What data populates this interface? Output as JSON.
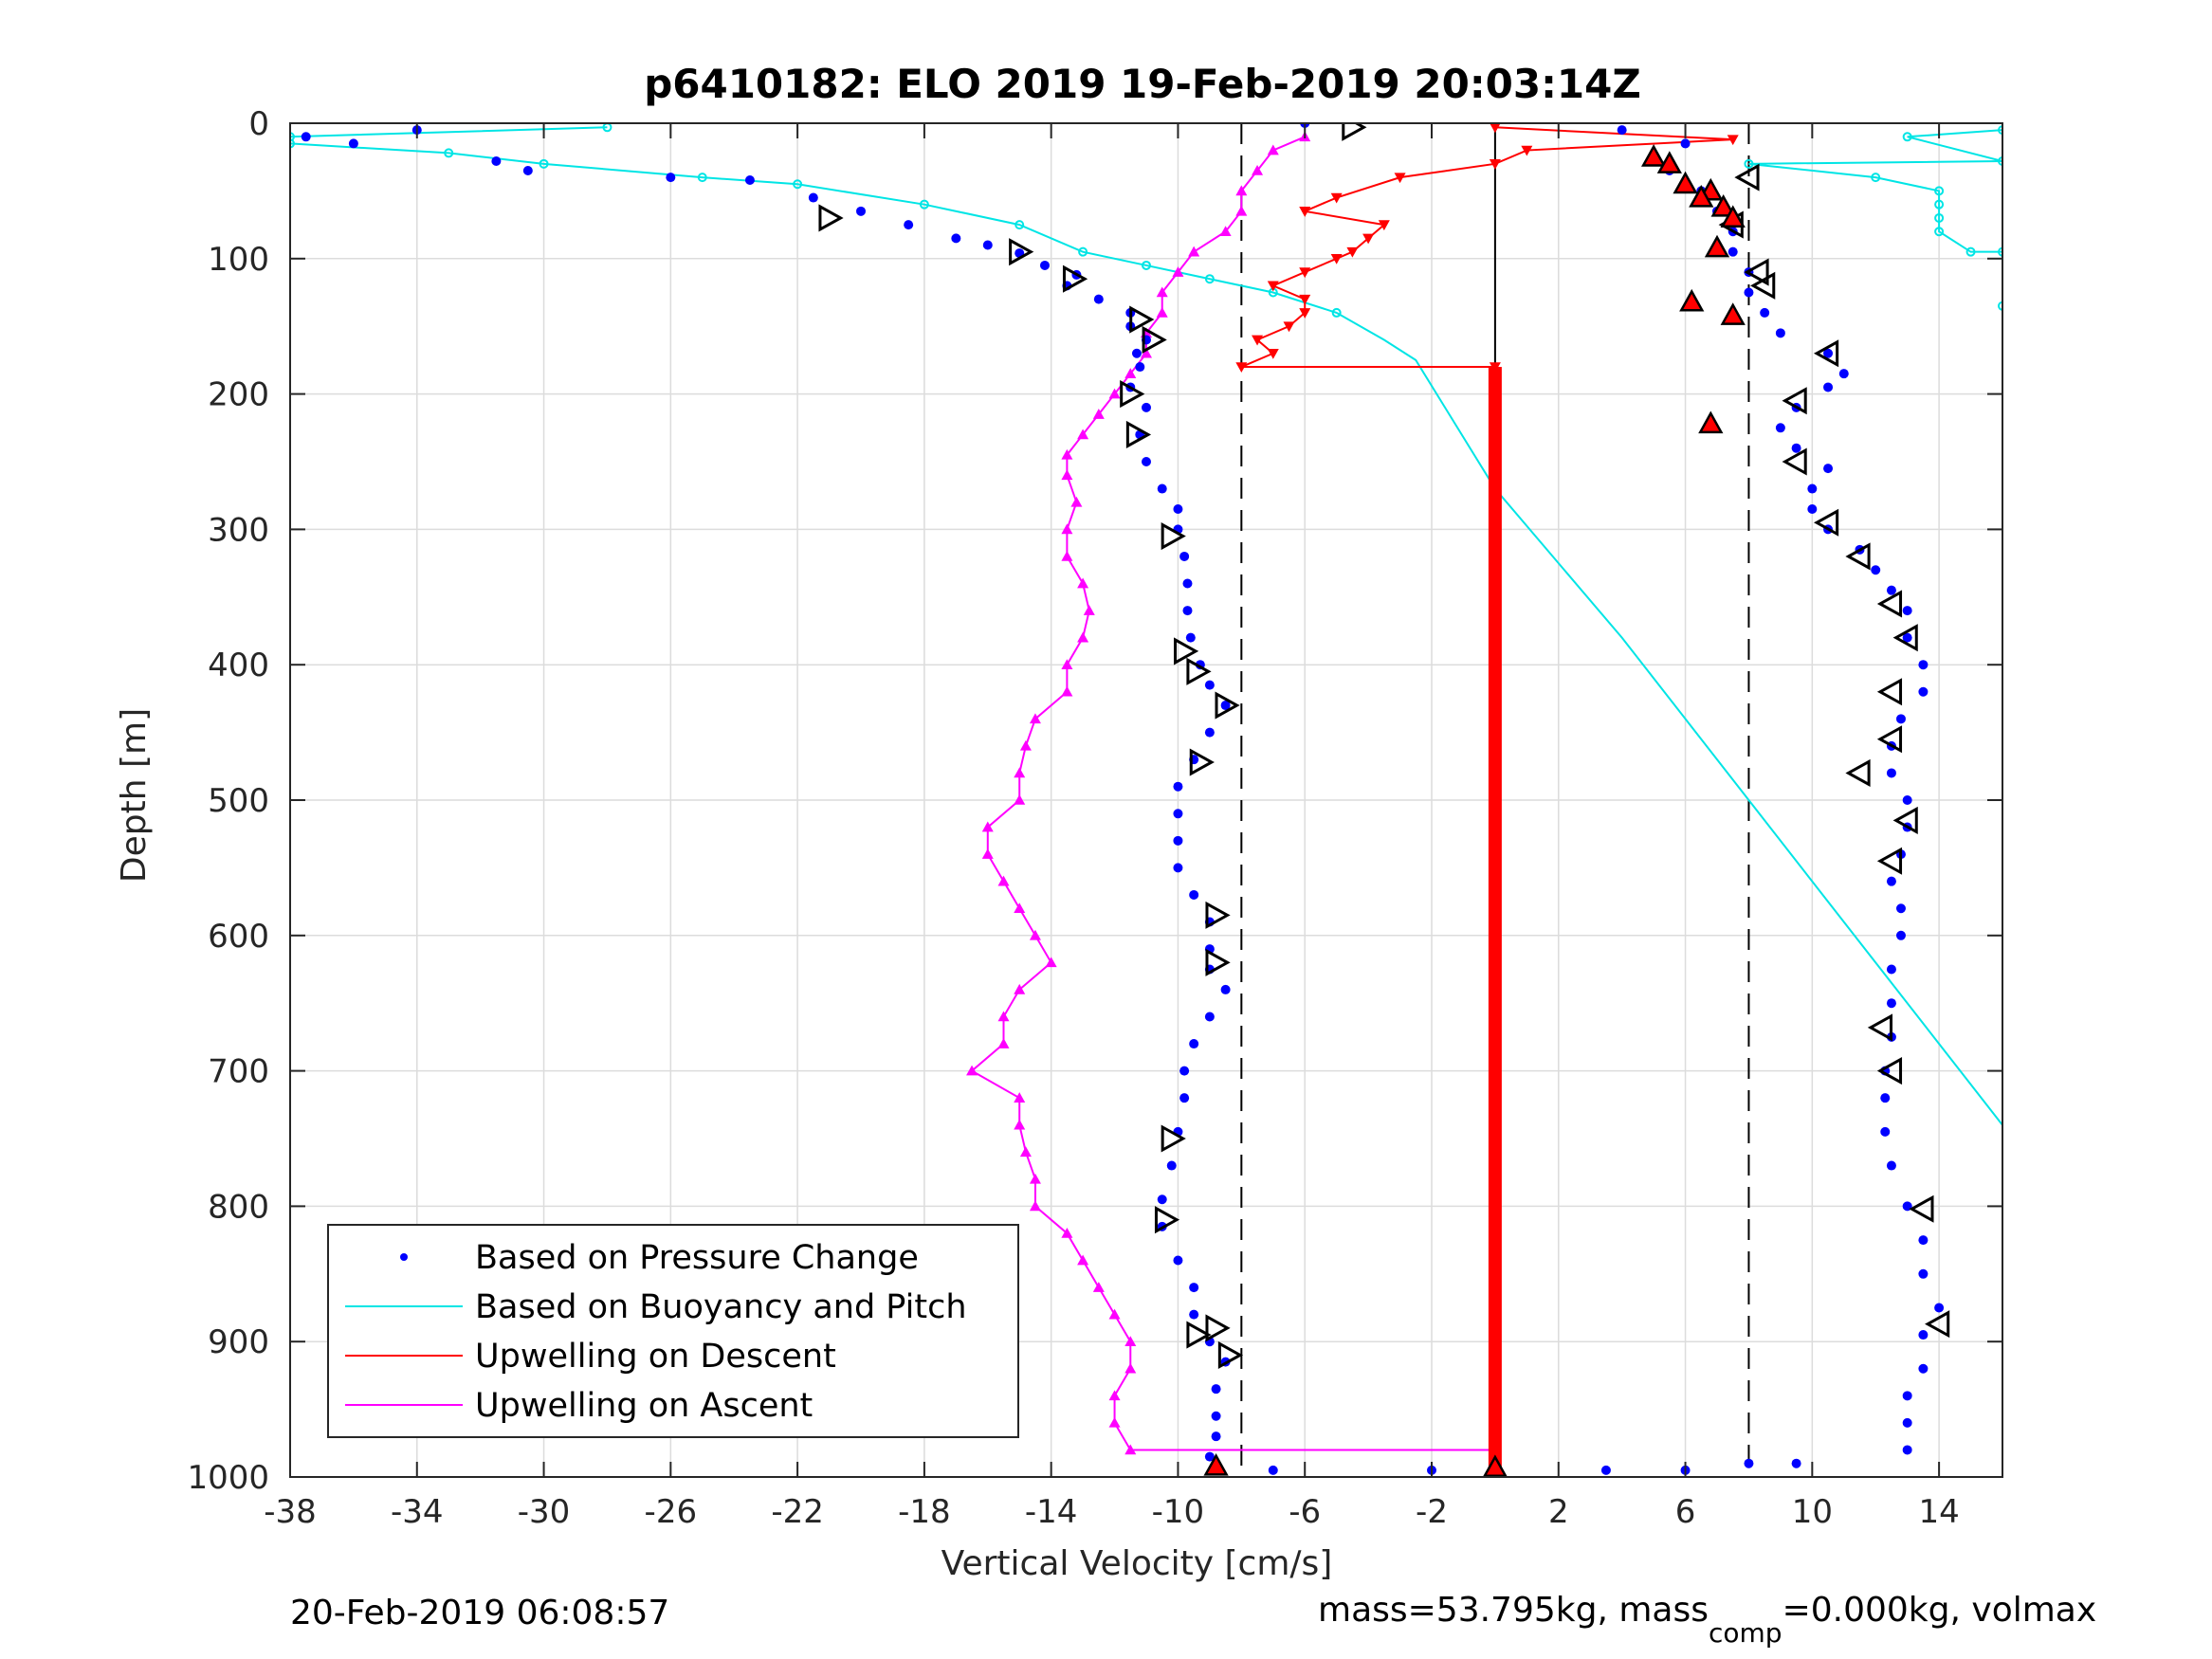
{
  "chart_data": {
    "type": "scatter",
    "title": "p6410182: ELO 2019 19-Feb-2019 20:03:14Z",
    "xlabel": "Vertical Velocity [cm/s]",
    "ylabel": "Depth [m]",
    "xlim": [
      -38,
      16
    ],
    "ylim": [
      0,
      1000
    ],
    "y_reversed": true,
    "grid": true,
    "xticks": [
      -38,
      -34,
      -30,
      -26,
      -22,
      -18,
      -14,
      -10,
      -6,
      -2,
      2,
      6,
      10,
      14
    ],
    "yticks": [
      0,
      100,
      200,
      300,
      400,
      500,
      600,
      700,
      800,
      900,
      1000
    ],
    "reference_lines": {
      "dashed_x": [
        -8,
        8
      ],
      "solid_x": 0
    },
    "legend": {
      "placement": "bottom-left",
      "entries": [
        {
          "label": "Based on Pressure Change",
          "color": "#0000ff",
          "marker": "dot"
        },
        {
          "label": "Based on Buoyancy and Pitch",
          "color": "#00e5e5",
          "marker": "line"
        },
        {
          "label": "Upwelling on Descent",
          "color": "#ff0000",
          "marker": "line"
        },
        {
          "label": "Upwelling on Ascent",
          "color": "#ff00ff",
          "marker": "line"
        }
      ]
    },
    "series": [
      {
        "name": "Based on Pressure Change",
        "color": "#0000ff",
        "style": "dots",
        "descent": [
          [
            -37.5,
            10
          ],
          [
            -36,
            15
          ],
          [
            -34,
            5
          ],
          [
            -31.5,
            28
          ],
          [
            -30.5,
            35
          ],
          [
            -26,
            40
          ],
          [
            -23.5,
            42
          ],
          [
            -21.5,
            55
          ],
          [
            -20,
            65
          ],
          [
            -18.5,
            75
          ],
          [
            -17,
            85
          ],
          [
            -16,
            90
          ],
          [
            -15,
            96
          ],
          [
            -14.2,
            105
          ],
          [
            -13.2,
            112
          ],
          [
            -13.5,
            120
          ],
          [
            -12.5,
            130
          ],
          [
            -11.5,
            140
          ],
          [
            -11.5,
            150
          ],
          [
            -11,
            160
          ],
          [
            -11.3,
            170
          ],
          [
            -11.2,
            180
          ],
          [
            -11.5,
            195
          ],
          [
            -11,
            210
          ],
          [
            -11.2,
            230
          ],
          [
            -11,
            250
          ],
          [
            -10.5,
            270
          ],
          [
            -10,
            285
          ],
          [
            -10,
            300
          ],
          [
            -9.8,
            320
          ],
          [
            -9.7,
            340
          ],
          [
            -9.7,
            360
          ],
          [
            -9.6,
            380
          ],
          [
            -9.3,
            400
          ],
          [
            -9.0,
            415
          ],
          [
            -8.5,
            430
          ],
          [
            -9.0,
            450
          ],
          [
            -9.5,
            470
          ],
          [
            -10,
            490
          ],
          [
            -10,
            510
          ],
          [
            -10,
            530
          ],
          [
            -10,
            550
          ],
          [
            -9.5,
            570
          ],
          [
            -9.0,
            590
          ],
          [
            -9.0,
            610
          ],
          [
            -9.0,
            625
          ],
          [
            -8.5,
            640
          ],
          [
            -9.0,
            660
          ],
          [
            -9.5,
            680
          ],
          [
            -9.8,
            700
          ],
          [
            -9.8,
            720
          ],
          [
            -10.0,
            745
          ],
          [
            -10.2,
            770
          ],
          [
            -10.5,
            795
          ],
          [
            -10.5,
            815
          ],
          [
            -10.0,
            840
          ],
          [
            -9.5,
            860
          ],
          [
            -9.5,
            880
          ],
          [
            -9.0,
            900
          ],
          [
            -8.5,
            915
          ],
          [
            -8.8,
            935
          ],
          [
            -8.8,
            955
          ],
          [
            -8.8,
            970
          ],
          [
            -9.0,
            985
          ],
          [
            -8.8,
            995
          ]
        ],
        "ascent": [
          [
            -7.0,
            995
          ],
          [
            -2.0,
            995
          ],
          [
            3.5,
            995
          ],
          [
            6.0,
            995
          ],
          [
            8.0,
            990
          ],
          [
            9.5,
            990
          ],
          [
            13.0,
            980
          ],
          [
            13.0,
            960
          ],
          [
            13.0,
            940
          ],
          [
            13.5,
            920
          ],
          [
            13.5,
            895
          ],
          [
            14.0,
            875
          ],
          [
            13.5,
            850
          ],
          [
            13.5,
            825
          ],
          [
            13.0,
            800
          ],
          [
            12.5,
            770
          ],
          [
            12.3,
            745
          ],
          [
            12.3,
            720
          ],
          [
            12.3,
            700
          ],
          [
            12.5,
            675
          ],
          [
            12.5,
            650
          ],
          [
            12.5,
            625
          ],
          [
            12.8,
            600
          ],
          [
            12.8,
            580
          ],
          [
            12.5,
            560
          ],
          [
            12.8,
            540
          ],
          [
            13.0,
            520
          ],
          [
            13.0,
            500
          ],
          [
            12.5,
            480
          ],
          [
            12.5,
            460
          ],
          [
            12.8,
            440
          ],
          [
            13.5,
            420
          ],
          [
            13.5,
            400
          ],
          [
            13.0,
            380
          ],
          [
            13.0,
            360
          ],
          [
            12.5,
            345
          ],
          [
            12.0,
            330
          ],
          [
            11.5,
            315
          ],
          [
            10.5,
            300
          ],
          [
            10.0,
            285
          ],
          [
            10.0,
            270
          ],
          [
            10.5,
            255
          ],
          [
            9.5,
            240
          ],
          [
            9.0,
            225
          ],
          [
            9.5,
            210
          ],
          [
            10.5,
            195
          ],
          [
            11.0,
            185
          ],
          [
            10.5,
            170
          ],
          [
            9.0,
            155
          ],
          [
            8.5,
            140
          ],
          [
            8.0,
            125
          ],
          [
            8.0,
            110
          ],
          [
            7.5,
            95
          ],
          [
            7.5,
            80
          ],
          [
            7.0,
            65
          ],
          [
            6.5,
            50
          ],
          [
            5.5,
            35
          ],
          [
            5.0,
            25
          ],
          [
            6.0,
            15
          ],
          [
            4.0,
            5
          ],
          [
            -6.0,
            0
          ]
        ]
      },
      {
        "name": "Based on Buoyancy and Pitch",
        "color": "#00e5e5",
        "style": "line",
        "points": [
          [
            -28,
            3
          ],
          [
            -38,
            10
          ],
          [
            -38,
            15
          ],
          [
            -33,
            22
          ],
          [
            -30,
            30
          ],
          [
            -25,
            40
          ],
          [
            -22,
            45
          ],
          [
            -18,
            60
          ],
          [
            -15,
            75
          ],
          [
            -13,
            95
          ],
          [
            -11,
            105
          ],
          [
            -9,
            115
          ],
          [
            -7,
            125
          ],
          [
            -5,
            140
          ],
          [
            -3.5,
            160
          ],
          [
            -2.5,
            175
          ],
          [
            0,
            270
          ],
          [
            4,
            380
          ],
          [
            8,
            500
          ],
          [
            12,
            620
          ],
          [
            16,
            740
          ]
        ],
        "surface_right": [
          [
            16,
            5
          ],
          [
            13,
            10
          ],
          [
            16,
            28
          ],
          [
            8,
            30
          ],
          [
            12,
            40
          ],
          [
            14,
            50
          ],
          [
            14,
            60
          ],
          [
            14,
            70
          ],
          [
            14,
            80
          ],
          [
            15,
            95
          ],
          [
            16,
            95
          ],
          [
            16,
            135
          ]
        ]
      },
      {
        "name": "Upwelling on Descent",
        "color": "#ff0000",
        "style": "triangle-down",
        "points": [
          [
            0,
            3
          ],
          [
            7.5,
            12
          ],
          [
            1,
            20
          ],
          [
            0,
            30
          ],
          [
            -3,
            40
          ],
          [
            -5,
            55
          ],
          [
            -6,
            65
          ],
          [
            -3.5,
            75
          ],
          [
            -4,
            85
          ],
          [
            -4.5,
            95
          ],
          [
            -5,
            100
          ],
          [
            -6,
            110
          ],
          [
            -7,
            120
          ],
          [
            -6,
            130
          ],
          [
            -6,
            140
          ],
          [
            -6.5,
            150
          ],
          [
            -7.5,
            160
          ],
          [
            -7,
            170
          ],
          [
            -8,
            180
          ],
          [
            0,
            180
          ]
        ],
        "bar": {
          "x": 0,
          "y_from": 180,
          "y_to": 1000
        }
      },
      {
        "name": "Upwelling on Ascent",
        "color": "#ff00ff",
        "style": "triangle-up",
        "points": [
          [
            0,
            980
          ],
          [
            -11.5,
            980
          ],
          [
            -12,
            960
          ],
          [
            -12,
            940
          ],
          [
            -11.5,
            920
          ],
          [
            -11.5,
            900
          ],
          [
            -12,
            880
          ],
          [
            -12.5,
            860
          ],
          [
            -13,
            840
          ],
          [
            -13.5,
            820
          ],
          [
            -14.5,
            800
          ],
          [
            -14.5,
            780
          ],
          [
            -14.8,
            760
          ],
          [
            -15,
            740
          ],
          [
            -15,
            720
          ],
          [
            -16.5,
            700
          ],
          [
            -15.5,
            680
          ],
          [
            -15.5,
            660
          ],
          [
            -15,
            640
          ],
          [
            -14,
            620
          ],
          [
            -14.5,
            600
          ],
          [
            -15,
            580
          ],
          [
            -15.5,
            560
          ],
          [
            -16,
            540
          ],
          [
            -16,
            520
          ],
          [
            -15,
            500
          ],
          [
            -15,
            480
          ],
          [
            -14.8,
            460
          ],
          [
            -14.5,
            440
          ],
          [
            -13.5,
            420
          ],
          [
            -13.5,
            400
          ],
          [
            -13.0,
            380
          ],
          [
            -12.8,
            360
          ],
          [
            -13,
            340
          ],
          [
            -13.5,
            320
          ],
          [
            -13.5,
            300
          ],
          [
            -13.2,
            280
          ],
          [
            -13.5,
            260
          ],
          [
            -13.5,
            245
          ],
          [
            -13,
            230
          ],
          [
            -12.5,
            215
          ],
          [
            -12,
            200
          ],
          [
            -11.5,
            185
          ],
          [
            -11,
            170
          ],
          [
            -11,
            155
          ],
          [
            -10.5,
            140
          ],
          [
            -10.5,
            125
          ],
          [
            -10,
            110
          ],
          [
            -9.5,
            95
          ],
          [
            -8.5,
            80
          ],
          [
            -8,
            65
          ],
          [
            -8,
            50
          ],
          [
            -7.5,
            35
          ],
          [
            -7,
            20
          ],
          [
            -6,
            10
          ]
        ]
      },
      {
        "name": "",
        "color": "#000000",
        "style": "open-triangles",
        "points": [
          [
            -21,
            70
          ],
          [
            -15,
            95
          ],
          [
            -13.3,
            115
          ],
          [
            -11.2,
            145
          ],
          [
            -10.8,
            160
          ],
          [
            -11.5,
            200
          ],
          [
            -11.3,
            230
          ],
          [
            -10.2,
            305
          ],
          [
            -9.8,
            390
          ],
          [
            -9.4,
            405
          ],
          [
            -8.5,
            430
          ],
          [
            -9.3,
            472
          ],
          [
            -8.8,
            585
          ],
          [
            -8.8,
            620
          ],
          [
            -10.2,
            750
          ],
          [
            -10.4,
            810
          ],
          [
            -9.4,
            895
          ],
          [
            -8.8,
            890
          ],
          [
            -8.4,
            910
          ],
          [
            -4.5,
            3
          ],
          [
            8.0,
            40
          ],
          [
            7.5,
            75
          ],
          [
            8.3,
            110
          ],
          [
            8.5,
            120
          ],
          [
            10.5,
            170
          ],
          [
            9.5,
            205
          ],
          [
            9.5,
            250
          ],
          [
            10.5,
            295
          ],
          [
            11.5,
            320
          ],
          [
            12.5,
            355
          ],
          [
            13.0,
            380
          ],
          [
            12.5,
            420
          ],
          [
            12.5,
            455
          ],
          [
            11.5,
            480
          ],
          [
            13.0,
            515
          ],
          [
            12.5,
            545
          ],
          [
            12.2,
            668
          ],
          [
            12.5,
            700
          ],
          [
            13.5,
            802
          ],
          [
            14.0,
            887
          ]
        ]
      },
      {
        "name": "",
        "color": "#ff0000",
        "style": "filled-triangles",
        "points": [
          [
            5,
            25
          ],
          [
            5.5,
            30
          ],
          [
            6,
            45
          ],
          [
            6.8,
            50
          ],
          [
            6.5,
            55
          ],
          [
            7.2,
            62
          ],
          [
            7.5,
            70
          ],
          [
            7.0,
            92
          ],
          [
            6.2,
            132
          ],
          [
            7.5,
            142
          ],
          [
            6.8,
            222
          ],
          [
            -8.8,
            992
          ],
          [
            0,
            993
          ]
        ]
      }
    ],
    "bottom_left_text": "20-Feb-2019 06:08:57",
    "bottom_right_text": {
      "part1": "mass=53.795kg, mass",
      "subscript": "comp",
      "part2": "=0.000kg, volmax"
    }
  }
}
